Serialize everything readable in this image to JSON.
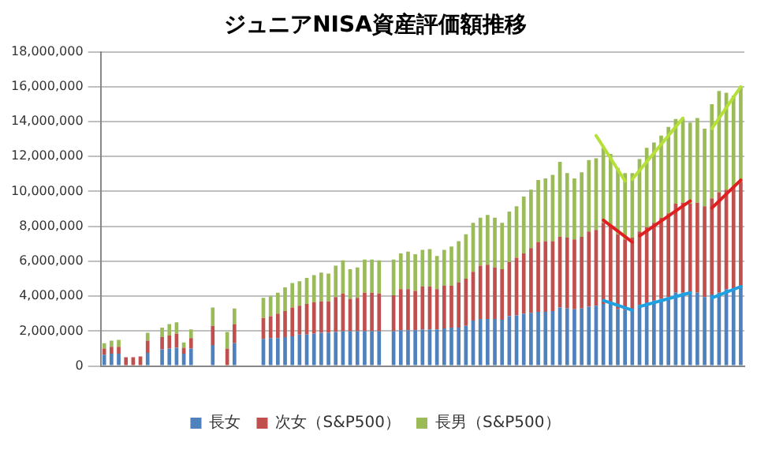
{
  "chart_data": {
    "type": "bar",
    "title": "ジュニアNISA資産評価額推移",
    "stacked": true,
    "grid": "y",
    "legend": "bottom",
    "categories": [
      null,
      null,
      null,
      null,
      null,
      null,
      null,
      null,
      null,
      null,
      null,
      null,
      null,
      null,
      null,
      null,
      null,
      null,
      null,
      null,
      null,
      null,
      null,
      null,
      null,
      null,
      null,
      null,
      null,
      null,
      null,
      null,
      null,
      null,
      null,
      null,
      null,
      null,
      null,
      null,
      null,
      null,
      null,
      null,
      null,
      null,
      null,
      null,
      null,
      null,
      null,
      null,
      null,
      null,
      null,
      null,
      null,
      null,
      null,
      null,
      null,
      null,
      null,
      null,
      null,
      null,
      null,
      null,
      null,
      null,
      null,
      null,
      null,
      null,
      null,
      null,
      null,
      null,
      null,
      null,
      null,
      null,
      null,
      null,
      null,
      null,
      null,
      null,
      null
    ],
    "ylim": [
      0,
      18000000
    ],
    "yticks": [
      {
        "value": 0,
        "label": "0"
      },
      {
        "value": 2000000,
        "label": "2,000,000"
      },
      {
        "value": 4000000,
        "label": "4,000,000"
      },
      {
        "value": 6000000,
        "label": "6,000,000"
      },
      {
        "value": 8000000,
        "label": "8,000,000"
      },
      {
        "value": 10000000,
        "label": "10,000,000"
      },
      {
        "value": 12000000,
        "label": "12,000,000"
      },
      {
        "value": 14000000,
        "label": "14,000,000"
      },
      {
        "value": 16000000,
        "label": "16,000,000"
      },
      {
        "value": 18000000,
        "label": "18,000,000"
      }
    ],
    "series": [
      {
        "name": "長女",
        "color": "#4f81bd",
        "values": [
          650000,
          700000,
          700000,
          null,
          null,
          null,
          750000,
          null,
          950000,
          1000000,
          1050000,
          700000,
          1000000,
          null,
          null,
          1200000,
          null,
          null,
          1300000,
          null,
          null,
          null,
          1550000,
          1600000,
          1600000,
          1650000,
          1700000,
          1800000,
          1800000,
          1850000,
          1900000,
          1900000,
          1950000,
          2000000,
          2000000,
          2000000,
          2000000,
          2000000,
          2000000,
          null,
          2000000,
          2050000,
          2050000,
          2050000,
          2100000,
          2100000,
          2100000,
          2150000,
          2200000,
          2200000,
          2300000,
          2600000,
          2700000,
          2700000,
          2700000,
          2650000,
          2850000,
          2900000,
          3000000,
          3050000,
          3100000,
          3100000,
          3150000,
          3350000,
          3300000,
          3250000,
          3300000,
          3400000,
          3450000,
          3550000,
          3600000,
          3250000,
          3200000,
          3250000,
          3500000,
          3650000,
          3750000,
          3850000,
          3950000,
          4200000,
          4200000,
          4150000,
          4200000,
          3950000,
          4100000,
          4200000,
          4400000,
          4450000,
          4550000
        ]
      },
      {
        "name": "次女（S&P500）",
        "color": "#c0504d",
        "values": [
          350000,
          400000,
          400000,
          500000,
          500000,
          550000,
          700000,
          null,
          700000,
          750000,
          800000,
          350000,
          600000,
          null,
          null,
          1100000,
          null,
          1000000,
          1100000,
          null,
          null,
          null,
          1200000,
          1250000,
          1400000,
          1500000,
          1650000,
          1650000,
          1750000,
          1800000,
          1800000,
          1800000,
          2000000,
          2150000,
          1850000,
          1900000,
          2200000,
          2200000,
          2150000,
          null,
          2050000,
          2350000,
          2350000,
          2250000,
          2450000,
          2450000,
          2300000,
          2450000,
          2400000,
          2600000,
          2700000,
          2800000,
          3050000,
          3100000,
          2950000,
          2900000,
          3100000,
          3300000,
          3450000,
          3700000,
          4000000,
          4050000,
          4000000,
          4050000,
          4050000,
          4000000,
          4100000,
          4300000,
          4350000,
          4650000,
          4450000,
          4300000,
          4050000,
          4100000,
          4200000,
          4300000,
          4450000,
          4650000,
          4800000,
          5100000,
          5150000,
          5150000,
          5150000,
          5200000,
          5500000,
          5750000,
          5700000,
          5800000,
          6000000
        ]
      },
      {
        "name": "長男（S&P500）",
        "color": "#9bbb59",
        "values": [
          300000,
          350000,
          400000,
          null,
          null,
          null,
          450000,
          null,
          550000,
          650000,
          650000,
          300000,
          500000,
          null,
          null,
          1050000,
          null,
          950000,
          900000,
          null,
          null,
          null,
          1150000,
          1150000,
          1200000,
          1350000,
          1400000,
          1400000,
          1500000,
          1550000,
          1650000,
          1600000,
          1800000,
          1900000,
          1700000,
          1750000,
          1900000,
          1900000,
          1900000,
          null,
          2050000,
          2050000,
          2150000,
          2100000,
          2100000,
          2150000,
          1900000,
          2050000,
          2250000,
          2350000,
          2550000,
          2800000,
          2750000,
          2850000,
          2850000,
          2650000,
          2900000,
          2950000,
          3250000,
          3350000,
          3550000,
          3600000,
          3800000,
          4300000,
          3700000,
          3500000,
          3700000,
          4100000,
          4100000,
          4300000,
          4100000,
          3800000,
          3800000,
          3700000,
          4150000,
          4550000,
          4600000,
          4700000,
          4950000,
          4850000,
          4800000,
          4650000,
          4850000,
          4450000,
          5400000,
          5800000,
          5550000,
          5250000,
          5450000
        ]
      },
      {
        "type": "line",
        "color": "#b5e03a",
        "values": [
          null,
          null,
          null,
          null,
          null,
          null,
          null,
          null,
          null,
          null,
          null,
          null,
          null,
          null,
          null,
          null,
          null,
          null,
          null,
          null,
          null,
          null,
          null,
          null,
          null,
          null,
          null,
          null,
          null,
          null,
          null,
          null,
          null,
          null,
          null,
          null,
          null,
          null,
          null,
          null,
          null,
          null,
          null,
          null,
          null,
          null,
          null,
          null,
          null,
          null,
          null,
          null,
          null,
          null,
          null,
          null,
          null,
          null,
          null,
          null,
          null,
          null,
          null,
          null,
          null,
          null,
          null,
          null,
          13200000,
          null,
          null,
          null,
          10600000,
          null,
          null,
          null,
          null,
          null,
          null,
          null,
          null,
          null,
          null,
          null,
          null,
          null,
          null,
          null,
          null
        ]
      },
      {
        "type": "line",
        "color": "#b5e03a",
        "values": [
          null,
          null,
          null,
          null,
          null,
          null,
          null,
          null,
          null,
          null,
          null,
          null,
          null,
          null,
          null,
          null,
          null,
          null,
          null,
          null,
          null,
          null,
          null,
          null,
          null,
          null,
          null,
          null,
          null,
          null,
          null,
          null,
          null,
          null,
          null,
          null,
          null,
          null,
          null,
          null,
          null,
          null,
          null,
          null,
          null,
          null,
          null,
          null,
          null,
          null,
          null,
          null,
          null,
          null,
          null,
          null,
          null,
          null,
          null,
          null,
          null,
          null,
          null,
          null,
          null,
          null,
          null,
          null,
          null,
          null,
          null,
          null,
          null,
          10700000,
          null,
          null,
          null,
          null,
          null,
          null,
          14200000,
          null,
          null,
          null,
          null,
          null,
          null,
          null,
          null
        ]
      },
      {
        "type": "line",
        "color": "#b5e03a",
        "values": [
          null,
          null,
          null,
          null,
          null,
          null,
          null,
          null,
          null,
          null,
          null,
          null,
          null,
          null,
          null,
          null,
          null,
          null,
          null,
          null,
          null,
          null,
          null,
          null,
          null,
          null,
          null,
          null,
          null,
          null,
          null,
          null,
          null,
          null,
          null,
          null,
          null,
          null,
          null,
          null,
          null,
          null,
          null,
          null,
          null,
          null,
          null,
          null,
          null,
          null,
          null,
          null,
          null,
          null,
          null,
          null,
          null,
          null,
          null,
          null,
          null,
          null,
          null,
          null,
          null,
          null,
          null,
          null,
          null,
          null,
          null,
          null,
          null,
          null,
          null,
          null,
          null,
          null,
          null,
          null,
          null,
          null,
          null,
          null,
          13600000,
          null,
          null,
          null,
          16000000
        ]
      },
      {
        "type": "line",
        "color": "#e02020",
        "values": [
          null,
          null,
          null,
          null,
          null,
          null,
          null,
          null,
          null,
          null,
          null,
          null,
          null,
          null,
          null,
          null,
          null,
          null,
          null,
          null,
          null,
          null,
          null,
          null,
          null,
          null,
          null,
          null,
          null,
          null,
          null,
          null,
          null,
          null,
          null,
          null,
          null,
          null,
          null,
          null,
          null,
          null,
          null,
          null,
          null,
          null,
          null,
          null,
          null,
          null,
          null,
          null,
          null,
          null,
          null,
          null,
          null,
          null,
          null,
          null,
          null,
          null,
          null,
          null,
          null,
          null,
          null,
          null,
          null,
          8350000,
          null,
          null,
          null,
          7100000,
          null,
          null,
          null,
          null,
          null,
          null,
          null,
          null,
          null,
          null,
          null,
          null,
          null,
          null,
          null
        ]
      },
      {
        "type": "line",
        "color": "#e02020",
        "values": [
          null,
          null,
          null,
          null,
          null,
          null,
          null,
          null,
          null,
          null,
          null,
          null,
          null,
          null,
          null,
          null,
          null,
          null,
          null,
          null,
          null,
          null,
          null,
          null,
          null,
          null,
          null,
          null,
          null,
          null,
          null,
          null,
          null,
          null,
          null,
          null,
          null,
          null,
          null,
          null,
          null,
          null,
          null,
          null,
          null,
          null,
          null,
          null,
          null,
          null,
          null,
          null,
          null,
          null,
          null,
          null,
          null,
          null,
          null,
          null,
          null,
          null,
          null,
          null,
          null,
          null,
          null,
          null,
          null,
          null,
          null,
          null,
          null,
          null,
          7450000,
          null,
          null,
          null,
          null,
          null,
          null,
          9450000,
          null,
          null,
          null,
          null,
          null,
          null,
          null
        ]
      },
      {
        "type": "line",
        "color": "#e02020",
        "values": [
          null,
          null,
          null,
          null,
          null,
          null,
          null,
          null,
          null,
          null,
          null,
          null,
          null,
          null,
          null,
          null,
          null,
          null,
          null,
          null,
          null,
          null,
          null,
          null,
          null,
          null,
          null,
          null,
          null,
          null,
          null,
          null,
          null,
          null,
          null,
          null,
          null,
          null,
          null,
          null,
          null,
          null,
          null,
          null,
          null,
          null,
          null,
          null,
          null,
          null,
          null,
          null,
          null,
          null,
          null,
          null,
          null,
          null,
          null,
          null,
          null,
          null,
          null,
          null,
          null,
          null,
          null,
          null,
          null,
          null,
          null,
          null,
          null,
          null,
          null,
          null,
          null,
          null,
          null,
          null,
          null,
          null,
          null,
          null,
          9050000,
          null,
          null,
          null,
          10650000
        ]
      },
      {
        "type": "line",
        "color": "#1fa0e0",
        "values": [
          null,
          null,
          null,
          null,
          null,
          null,
          null,
          null,
          null,
          null,
          null,
          null,
          null,
          null,
          null,
          null,
          null,
          null,
          null,
          null,
          null,
          null,
          null,
          null,
          null,
          null,
          null,
          null,
          null,
          null,
          null,
          null,
          null,
          null,
          null,
          null,
          null,
          null,
          null,
          null,
          null,
          null,
          null,
          null,
          null,
          null,
          null,
          null,
          null,
          null,
          null,
          null,
          null,
          null,
          null,
          null,
          null,
          null,
          null,
          null,
          null,
          null,
          null,
          null,
          null,
          null,
          null,
          null,
          null,
          3750000,
          null,
          null,
          null,
          3200000,
          null,
          null,
          null,
          null,
          null,
          null,
          null,
          null,
          null,
          null,
          null,
          null,
          null,
          null,
          null
        ]
      },
      {
        "type": "line",
        "color": "#1fa0e0",
        "values": [
          null,
          null,
          null,
          null,
          null,
          null,
          null,
          null,
          null,
          null,
          null,
          null,
          null,
          null,
          null,
          null,
          null,
          null,
          null,
          null,
          null,
          null,
          null,
          null,
          null,
          null,
          null,
          null,
          null,
          null,
          null,
          null,
          null,
          null,
          null,
          null,
          null,
          null,
          null,
          null,
          null,
          null,
          null,
          null,
          null,
          null,
          null,
          null,
          null,
          null,
          null,
          null,
          null,
          null,
          null,
          null,
          null,
          null,
          null,
          null,
          null,
          null,
          null,
          null,
          null,
          null,
          null,
          null,
          null,
          null,
          null,
          null,
          null,
          null,
          3400000,
          null,
          null,
          null,
          null,
          null,
          null,
          4200000,
          null,
          null,
          null,
          null,
          null,
          null,
          null
        ]
      },
      {
        "type": "line",
        "color": "#1fa0e0",
        "values": [
          null,
          null,
          null,
          null,
          null,
          null,
          null,
          null,
          null,
          null,
          null,
          null,
          null,
          null,
          null,
          null,
          null,
          null,
          null,
          null,
          null,
          null,
          null,
          null,
          null,
          null,
          null,
          null,
          null,
          null,
          null,
          null,
          null,
          null,
          null,
          null,
          null,
          null,
          null,
          null,
          null,
          null,
          null,
          null,
          null,
          null,
          null,
          null,
          null,
          null,
          null,
          null,
          null,
          null,
          null,
          null,
          null,
          null,
          null,
          null,
          null,
          null,
          null,
          null,
          null,
          null,
          null,
          null,
          null,
          null,
          null,
          null,
          null,
          null,
          null,
          null,
          null,
          null,
          null,
          null,
          null,
          null,
          null,
          null,
          3900000,
          null,
          null,
          null,
          4550000
        ]
      }
    ]
  }
}
